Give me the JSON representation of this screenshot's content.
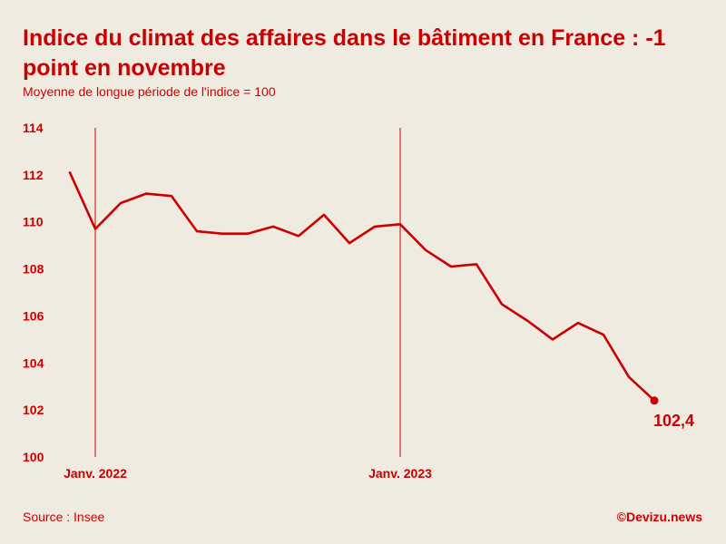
{
  "header": {
    "title": "Indice du climat des affaires dans le bâtiment en France : -1 point en novembre",
    "subtitle": "Moyenne de longue période de l'indice = 100"
  },
  "footer": {
    "source": "Source : Insee",
    "credit": "©Devizu.news"
  },
  "colors": {
    "accent": "#cc0000",
    "background": "#efebe1"
  },
  "chart_data": {
    "type": "line",
    "title": "Indice du climat des affaires dans le bâtiment en France : -1 point en novembre",
    "subtitle": "Moyenne de longue période de l'indice = 100",
    "xlabel": "",
    "ylabel": "",
    "ylim": [
      100,
      114
    ],
    "yticks": [
      100,
      102,
      104,
      106,
      108,
      110,
      112,
      114
    ],
    "x_tick_labels": [
      {
        "label": "Janv. 2022",
        "index": 1
      },
      {
        "label": "Janv. 2023",
        "index": 13
      }
    ],
    "grid": false,
    "legend": "none",
    "series": [
      {
        "values": [
          112.1,
          109.7,
          110.8,
          111.2,
          111.1,
          109.6,
          109.5,
          109.5,
          109.8,
          109.4,
          110.3,
          109.1,
          109.8,
          109.9,
          108.8,
          108.1,
          108.2,
          106.5,
          105.8,
          105.0,
          105.7,
          105.2,
          103.4,
          102.4
        ],
        "color": "#cc0000"
      }
    ],
    "end_label": "102,4"
  }
}
